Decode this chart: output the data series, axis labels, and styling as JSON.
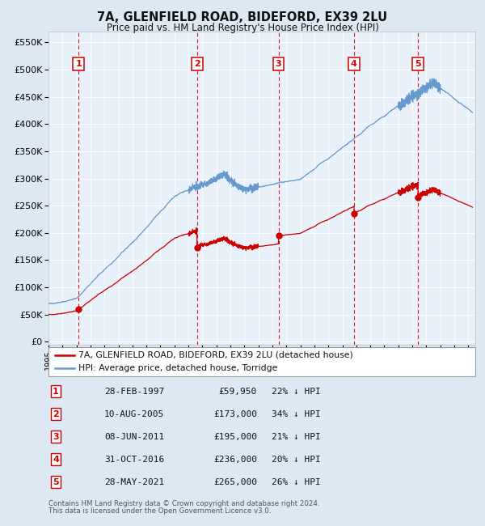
{
  "title": "7A, GLENFIELD ROAD, BIDEFORD, EX39 2LU",
  "subtitle": "Price paid vs. HM Land Registry's House Price Index (HPI)",
  "legend_line1": "7A, GLENFIELD ROAD, BIDEFORD, EX39 2LU (detached house)",
  "legend_line2": "HPI: Average price, detached house, Torridge",
  "footer1": "Contains HM Land Registry data © Crown copyright and database right 2024.",
  "footer2": "This data is licensed under the Open Government Licence v3.0.",
  "sales": [
    {
      "num": 1,
      "date": "28-FEB-1997",
      "price": 59950,
      "pct": "22% ↓ HPI"
    },
    {
      "num": 2,
      "date": "10-AUG-2005",
      "price": 173000,
      "pct": "34% ↓ HPI"
    },
    {
      "num": 3,
      "date": "08-JUN-2011",
      "price": 195000,
      "pct": "21% ↓ HPI"
    },
    {
      "num": 4,
      "date": "31-OCT-2016",
      "price": 236000,
      "pct": "20% ↓ HPI"
    },
    {
      "num": 5,
      "date": "28-MAY-2021",
      "price": 265000,
      "pct": "26% ↓ HPI"
    }
  ],
  "sale_dates_decimal": [
    1997.154,
    2005.604,
    2011.438,
    2016.831,
    2021.405
  ],
  "sale_prices": [
    59950,
    173000,
    195000,
    236000,
    265000
  ],
  "ylim": [
    0,
    560000
  ],
  "yticks": [
    0,
    50000,
    100000,
    150000,
    200000,
    250000,
    300000,
    350000,
    400000,
    450000,
    500000,
    550000
  ],
  "xlim_start": 1995.0,
  "xlim_end": 2025.5,
  "red_color": "#cc0000",
  "blue_color": "#6699cc"
}
